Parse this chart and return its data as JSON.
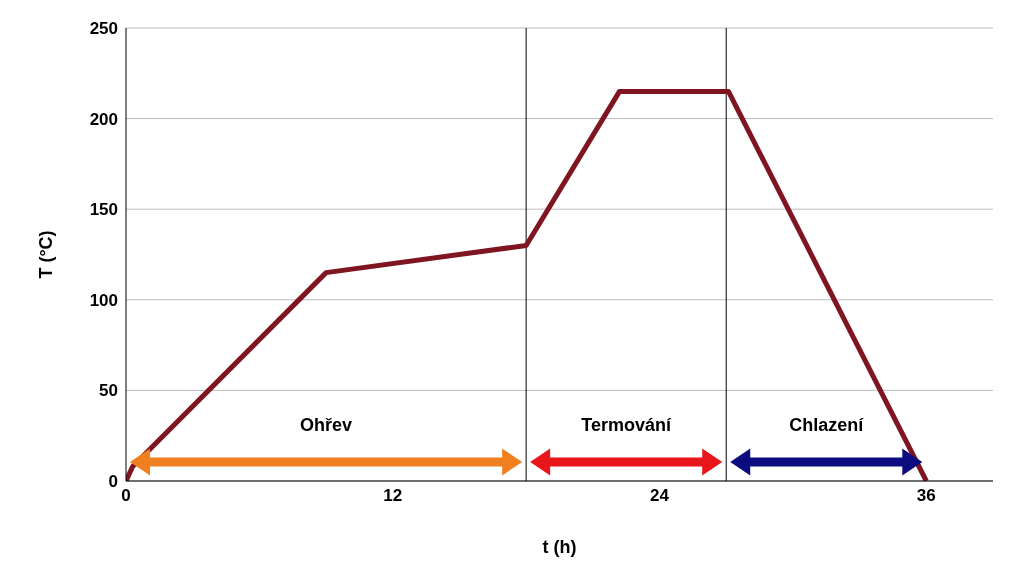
{
  "chart_data": {
    "type": "line",
    "xlabel": "t (h)",
    "ylabel": "T (°C)",
    "x": [
      0,
      0.3,
      9,
      18,
      22.2,
      27.1,
      36
    ],
    "series": [
      {
        "color": "#7f1520",
        "values": [
          0,
          8,
          115,
          130,
          215,
          215,
          0
        ]
      }
    ],
    "xlim": [
      0,
      39
    ],
    "xticks": [
      0,
      12,
      24,
      36
    ],
    "ylim": [
      0,
      250
    ],
    "yticks": [
      0,
      50,
      100,
      150,
      200,
      250
    ],
    "grid": "y",
    "marker": "none",
    "line_style": "solid",
    "ref_lines": [
      {
        "axis": "x",
        "value": 18,
        "color": "#000000"
      },
      {
        "axis": "x",
        "value": 27,
        "color": "#000000"
      }
    ],
    "annotations": [
      "Ohřev",
      "Termování",
      "Chlazení"
    ]
  }
}
